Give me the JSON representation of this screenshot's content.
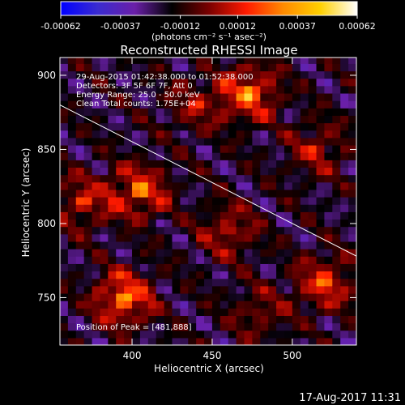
{
  "colorbar": {
    "tick_labels": [
      "-0.00062",
      "-0.00037",
      "-0.00012",
      "0.00012",
      "0.00037",
      "0.00062"
    ],
    "tick_values": [
      -0.00062,
      -0.00037,
      -0.00012,
      0.00012,
      0.00037,
      0.00062
    ],
    "range": [
      -0.00062,
      0.00062
    ],
    "unit_label": "(photons cm⁻² s⁻¹ asec⁻²)",
    "palette": [
      "#0000ff",
      "#3a2bd0",
      "#6a1fa8",
      "#000000",
      "#7a0000",
      "#ff1a00",
      "#ff8a00",
      "#ffd000",
      "#ffffff"
    ]
  },
  "plot": {
    "title": "Reconstructed RHESSI Image",
    "xlabel": "Heliocentric X (arcsec)",
    "ylabel": "Heliocentric Y (arcsec)",
    "xlim": [
      355,
      540
    ],
    "ylim": [
      718,
      912
    ],
    "x_ticks": [
      400,
      450,
      500
    ],
    "x_tick_labels": [
      "400",
      "450",
      "500"
    ],
    "y_ticks": [
      750,
      800,
      850,
      900
    ],
    "y_tick_labels": [
      "750",
      "800",
      "850",
      "900"
    ],
    "info_lines": [
      "29-Aug-2015 01:42:38.000 to 01:52:38.000",
      "Detectors: 3F 5F 6F 7F, Att 0",
      "Energy Range: 25.0 - 50.0 keV",
      "Clean    Total counts: 1.75E+04"
    ],
    "peak_label": "Position of Peak = [481,888]",
    "limb_line": {
      "x": [
        355,
        540
      ],
      "y": [
        880,
        778
      ]
    },
    "sources": [
      {
        "x": 473,
        "y": 888,
        "amp": 0.95
      },
      {
        "x": 405,
        "y": 822,
        "amp": 0.85
      },
      {
        "x": 395,
        "y": 750,
        "amp": 1.0
      },
      {
        "x": 370,
        "y": 815,
        "amp": 0.6
      },
      {
        "x": 520,
        "y": 760,
        "amp": 0.75
      },
      {
        "x": 460,
        "y": 795,
        "amp": 0.55
      },
      {
        "x": 515,
        "y": 850,
        "amp": 0.5
      },
      {
        "x": 440,
        "y": 880,
        "amp": 0.45
      },
      {
        "x": 480,
        "y": 740,
        "amp": 0.4
      }
    ]
  },
  "footer": {
    "timestamp": "17-Aug-2017 11:31"
  }
}
